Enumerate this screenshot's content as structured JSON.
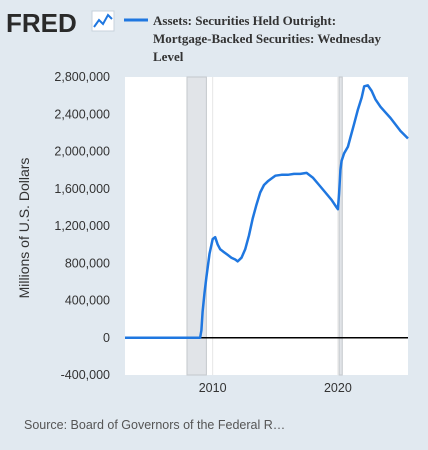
{
  "logo": {
    "text": "FRED",
    "icon": "trend-line-icon"
  },
  "legend": {
    "line1": "Assets: Securities Held Outright:",
    "line2": "Mortgage-Backed Securities: Wednesday",
    "line3": "Level"
  },
  "source": "Source: Board of Governors of the Federal R…",
  "colors": {
    "line": "#1f77e0",
    "background": "#e1e9f0",
    "plot_bg": "#ffffff",
    "recession": "#e1e4e8",
    "zero_line": "#000000"
  },
  "chart_data": {
    "type": "line",
    "ylabel": "Millions of U.S. Dollars",
    "ylim": [
      -400000,
      2800000
    ],
    "xlim": [
      2003.0,
      2025.6
    ],
    "yticks": [
      2800000,
      2400000,
      2000000,
      1600000,
      1200000,
      800000,
      400000,
      0,
      -400000
    ],
    "ytick_labels": [
      "2,800,000",
      "2,400,000",
      "2,000,000",
      "1,600,000",
      "1,200,000",
      "800,000",
      "400,000",
      "0",
      "-400,000"
    ],
    "xticks": [
      2010,
      2020
    ],
    "xtick_labels": [
      "2010",
      "2020"
    ],
    "grid": "vertical",
    "recessions": [
      [
        2007.95,
        2009.5
      ],
      [
        2020.1,
        2020.35
      ]
    ],
    "series": [
      {
        "name": "Assets: Securities Held Outright: Mortgage-Backed Securities: Wednesday Level",
        "x": [
          2003.0,
          2008.9,
          2009.0,
          2009.1,
          2009.2,
          2009.35,
          2009.5,
          2009.75,
          2010.0,
          2010.2,
          2010.4,
          2010.6,
          2010.9,
          2011.2,
          2011.5,
          2011.8,
          2012.0,
          2012.3,
          2012.6,
          2012.9,
          2013.2,
          2013.5,
          2013.8,
          2014.1,
          2014.4,
          2014.7,
          2015.0,
          2015.5,
          2016.0,
          2016.5,
          2017.0,
          2017.5,
          2018.0,
          2018.5,
          2019.0,
          2019.5,
          2019.9,
          2020.0,
          2020.1,
          2020.2,
          2020.3,
          2020.5,
          2020.8,
          2021.0,
          2021.3,
          2021.6,
          2021.9,
          2022.1,
          2022.4,
          2022.7,
          2023.0,
          2023.4,
          2023.8,
          2024.2,
          2024.6,
          2025.0,
          2025.6
        ],
        "values": [
          0,
          0,
          0,
          80000,
          280000,
          480000,
          650000,
          900000,
          1060000,
          1080000,
          1000000,
          950000,
          920000,
          890000,
          860000,
          840000,
          820000,
          860000,
          950000,
          1100000,
          1280000,
          1430000,
          1560000,
          1640000,
          1680000,
          1710000,
          1740000,
          1750000,
          1750000,
          1760000,
          1760000,
          1770000,
          1720000,
          1640000,
          1560000,
          1480000,
          1400000,
          1380000,
          1550000,
          1800000,
          1900000,
          1980000,
          2050000,
          2150000,
          2300000,
          2450000,
          2580000,
          2700000,
          2710000,
          2650000,
          2560000,
          2480000,
          2420000,
          2360000,
          2290000,
          2220000,
          2140000
        ]
      }
    ]
  }
}
